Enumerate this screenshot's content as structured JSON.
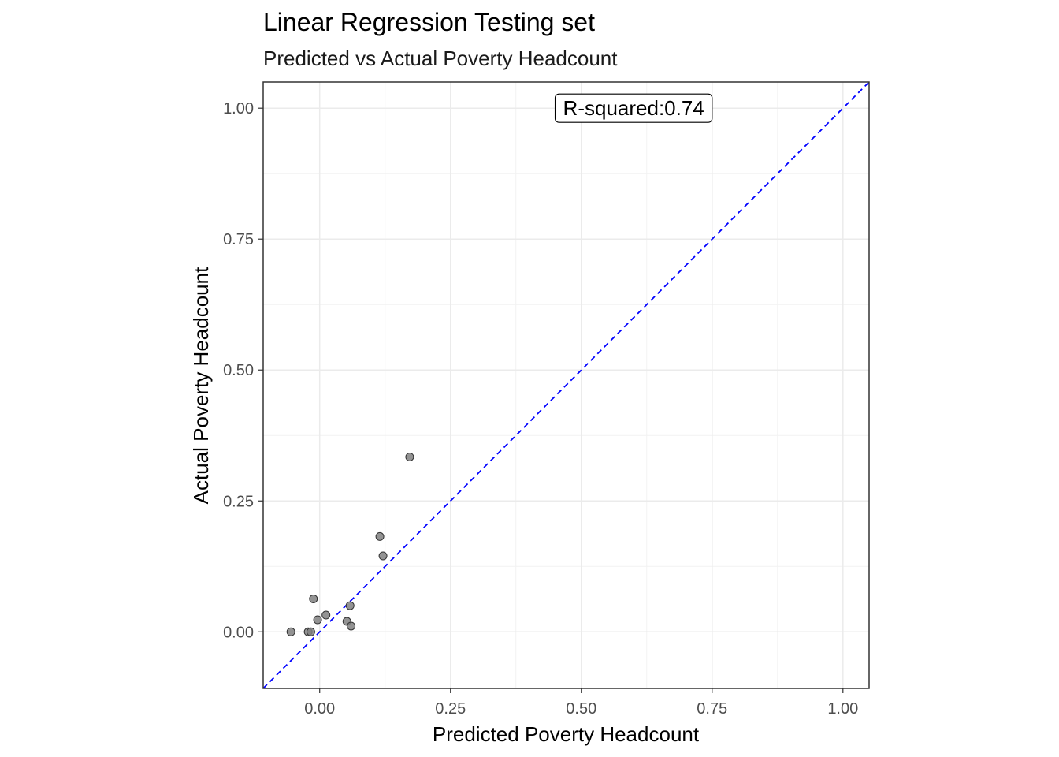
{
  "chart_data": {
    "type": "scatter",
    "title": "Linear Regression Testing set",
    "subtitle": "Predicted vs Actual Poverty Headcount",
    "xlabel": "Predicted Poverty Headcount",
    "ylabel": "Actual Poverty Headcount",
    "xlim": [
      -0.108,
      1.05
    ],
    "ylim": [
      -0.108,
      1.05
    ],
    "x_ticks": [
      "0.00",
      "0.25",
      "0.50",
      "0.75",
      "1.00"
    ],
    "y_ticks": [
      "0.00",
      "0.25",
      "0.50",
      "0.75",
      "1.00"
    ],
    "x_tick_values": [
      0,
      0.25,
      0.5,
      0.75,
      1.0
    ],
    "y_tick_values": [
      0,
      0.25,
      0.5,
      0.75,
      1.0
    ],
    "grid": true,
    "points": [
      {
        "x": -0.055,
        "y": 0.0
      },
      {
        "x": -0.022,
        "y": 0.0
      },
      {
        "x": -0.017,
        "y": 0.0
      },
      {
        "x": -0.012,
        "y": 0.063
      },
      {
        "x": -0.004,
        "y": 0.023
      },
      {
        "x": 0.012,
        "y": 0.032
      },
      {
        "x": 0.052,
        "y": 0.02
      },
      {
        "x": 0.058,
        "y": 0.05
      },
      {
        "x": 0.06,
        "y": 0.011
      },
      {
        "x": 0.115,
        "y": 0.182
      },
      {
        "x": 0.121,
        "y": 0.145
      },
      {
        "x": 0.172,
        "y": 0.334
      }
    ],
    "reference_line": {
      "slope": 1,
      "intercept": 0,
      "style": "dashed",
      "color": "#0000ff"
    },
    "annotation": "R-squared:0.74",
    "annotation_anchor": {
      "x": 0.6,
      "y": 1.0
    },
    "point_color": "#808080",
    "point_edge_color": "#333333"
  }
}
